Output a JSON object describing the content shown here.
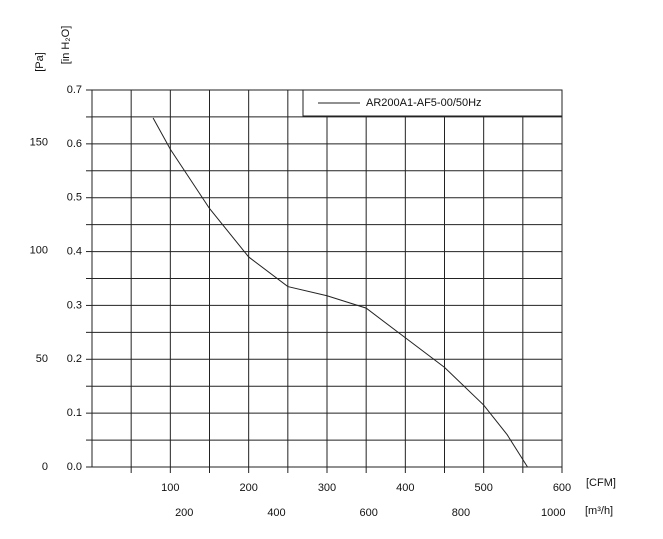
{
  "chart_data": {
    "type": "line",
    "y_label": "[in H₂O]",
    "y2_label": "[Pa]",
    "x_label": "[CFM]",
    "x2_label": "[m³/h]",
    "series": [
      {
        "name": "AR200A1-AF5-00/50Hz",
        "color": "#222222",
        "x": [
          78,
          100,
          150,
          200,
          250,
          300,
          350,
          400,
          450,
          500,
          530,
          556
        ],
        "values": [
          0.648,
          0.59,
          0.48,
          0.39,
          0.335,
          0.318,
          0.295,
          0.24,
          0.185,
          0.115,
          0.06,
          0.0
        ]
      }
    ],
    "xlim": [
      0,
      600
    ],
    "xticks": [
      100,
      200,
      300,
      400,
      500,
      600
    ],
    "x2lim": [
      0,
      1019
    ],
    "x2ticks": [
      200,
      400,
      600,
      800,
      1000
    ],
    "ylim": [
      0,
      0.7
    ],
    "yticks": [
      {
        "value": 0,
        "label": "0.0"
      },
      0.1,
      0.2,
      0.3,
      0.4,
      0.5,
      0.6,
      0.7
    ],
    "y2lim": [
      0,
      174.4
    ],
    "y2ticks": [
      0,
      50,
      100,
      150
    ],
    "grid": true,
    "legend": "top-right"
  }
}
